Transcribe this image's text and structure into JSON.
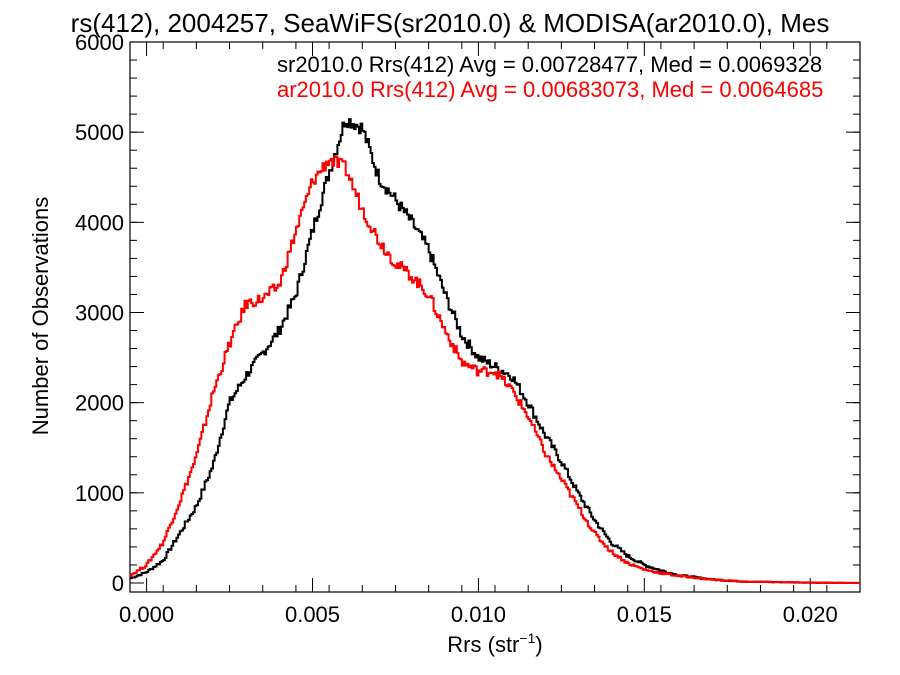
{
  "chart_data": {
    "type": "line",
    "title": "rs(412), 2004257, SeaWiFS(sr2010.0) & MODISA(ar2010.0), Mes",
    "xlabel": "Rrs (str",
    "xlabel_sup": "−1",
    "xlabel_close": ")",
    "ylabel": "Number of Observations",
    "xlim": [
      -0.0005,
      0.0215
    ],
    "ylim": [
      -100,
      6000
    ],
    "xticks": [
      0.0,
      0.005,
      0.01,
      0.015,
      0.02
    ],
    "xtick_labels": [
      "0.000",
      "0.005",
      "0.010",
      "0.015",
      "0.020"
    ],
    "yticks": [
      0,
      1000,
      2000,
      3000,
      4000,
      5000,
      6000
    ],
    "ytick_labels": [
      "0",
      "1000",
      "2000",
      "3000",
      "4000",
      "5000",
      "6000"
    ],
    "grid": false,
    "legend": [
      {
        "text": "sr2010.0 Rrs(412) Avg = 0.00728477, Med = 0.0069328",
        "color": "#000000"
      },
      {
        "text": "ar2010.0 Rrs(412) Avg = 0.00683073, Med = 0.0064685",
        "color": "#ff0000"
      }
    ],
    "series": [
      {
        "color": "#000000",
        "points": [
          [
            -0.0005,
            50
          ],
          [
            0.0,
            120
          ],
          [
            0.0005,
            250
          ],
          [
            0.001,
            550
          ],
          [
            0.0015,
            850
          ],
          [
            0.002,
            1300
          ],
          [
            0.0025,
            2000
          ],
          [
            0.003,
            2300
          ],
          [
            0.0035,
            2550
          ],
          [
            0.004,
            2800
          ],
          [
            0.0045,
            3200
          ],
          [
            0.005,
            3900
          ],
          [
            0.0055,
            4550
          ],
          [
            0.006,
            5150
          ],
          [
            0.0065,
            5050
          ],
          [
            0.007,
            4500
          ],
          [
            0.0075,
            4250
          ],
          [
            0.008,
            4000
          ],
          [
            0.0085,
            3700
          ],
          [
            0.009,
            3200
          ],
          [
            0.0095,
            2750
          ],
          [
            0.01,
            2500
          ],
          [
            0.0105,
            2400
          ],
          [
            0.011,
            2300
          ],
          [
            0.0115,
            2000
          ],
          [
            0.012,
            1650
          ],
          [
            0.0125,
            1350
          ],
          [
            0.013,
            1000
          ],
          [
            0.0135,
            700
          ],
          [
            0.014,
            450
          ],
          [
            0.0145,
            300
          ],
          [
            0.015,
            200
          ],
          [
            0.0155,
            140
          ],
          [
            0.016,
            90
          ],
          [
            0.017,
            40
          ],
          [
            0.018,
            15
          ],
          [
            0.02,
            4
          ],
          [
            0.0215,
            0
          ]
        ]
      },
      {
        "color": "#ff0000",
        "points": [
          [
            -0.0005,
            80
          ],
          [
            0.0,
            200
          ],
          [
            0.0005,
            450
          ],
          [
            0.001,
            900
          ],
          [
            0.0015,
            1400
          ],
          [
            0.002,
            2100
          ],
          [
            0.0025,
            2650
          ],
          [
            0.003,
            3100
          ],
          [
            0.0035,
            3150
          ],
          [
            0.004,
            3300
          ],
          [
            0.0045,
            3900
          ],
          [
            0.005,
            4450
          ],
          [
            0.0055,
            4700
          ],
          [
            0.006,
            4600
          ],
          [
            0.0065,
            4150
          ],
          [
            0.007,
            3800
          ],
          [
            0.0075,
            3550
          ],
          [
            0.008,
            3400
          ],
          [
            0.0085,
            3200
          ],
          [
            0.009,
            2800
          ],
          [
            0.0095,
            2450
          ],
          [
            0.01,
            2350
          ],
          [
            0.0105,
            2350
          ],
          [
            0.011,
            2150
          ],
          [
            0.0115,
            1850
          ],
          [
            0.012,
            1450
          ],
          [
            0.0125,
            1150
          ],
          [
            0.013,
            850
          ],
          [
            0.0135,
            550
          ],
          [
            0.014,
            350
          ],
          [
            0.0145,
            220
          ],
          [
            0.015,
            150
          ],
          [
            0.0155,
            110
          ],
          [
            0.016,
            80
          ],
          [
            0.017,
            40
          ],
          [
            0.018,
            15
          ],
          [
            0.02,
            4
          ],
          [
            0.0215,
            0
          ]
        ]
      }
    ]
  }
}
